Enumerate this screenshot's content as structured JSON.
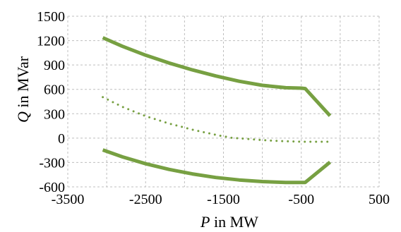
{
  "chart_data": {
    "type": "line",
    "xlabel_var": "P",
    "xlabel_unit": " in MW",
    "ylabel_var": "Q",
    "ylabel_unit": " in MVar",
    "xlim": [
      -3500,
      500
    ],
    "ylim": [
      -600,
      1500
    ],
    "x_ticks": [
      -3500,
      -2500,
      -1500,
      -500,
      500
    ],
    "y_ticks": [
      -600,
      -300,
      0,
      300,
      600,
      900,
      1200,
      1500
    ],
    "x_grid": [
      -3500,
      -3000,
      -2500,
      -2000,
      -1500,
      -1000,
      -500,
      0,
      500
    ],
    "y_grid": [
      -600,
      -300,
      0,
      300,
      600,
      900,
      1200,
      1500
    ],
    "grid": true,
    "color": "#77a042",
    "series": [
      {
        "style": "solid",
        "x": [
          -3050,
          -2800,
          -2500,
          -2200,
          -1900,
          -1600,
          -1300,
          -1000,
          -700,
          -500,
          -450,
          -130
        ],
        "y": [
          1235,
          1130,
          1020,
          925,
          840,
          765,
          700,
          650,
          620,
          615,
          610,
          275
        ]
      },
      {
        "style": "dotted",
        "x": [
          -3050,
          -2800,
          -2500,
          -2200,
          -1900,
          -1600,
          -1400,
          -1200,
          -1000,
          -800,
          -500,
          -130
        ],
        "y": [
          505,
          385,
          270,
          180,
          105,
          40,
          5,
          -10,
          -25,
          -35,
          -45,
          -45
        ]
      },
      {
        "style": "solid",
        "x": [
          -3050,
          -2800,
          -2500,
          -2200,
          -1900,
          -1600,
          -1300,
          -1000,
          -700,
          -500,
          -450,
          -130
        ],
        "y": [
          -145,
          -230,
          -315,
          -385,
          -440,
          -485,
          -515,
          -535,
          -545,
          -545,
          -545,
          -295
        ]
      }
    ]
  }
}
